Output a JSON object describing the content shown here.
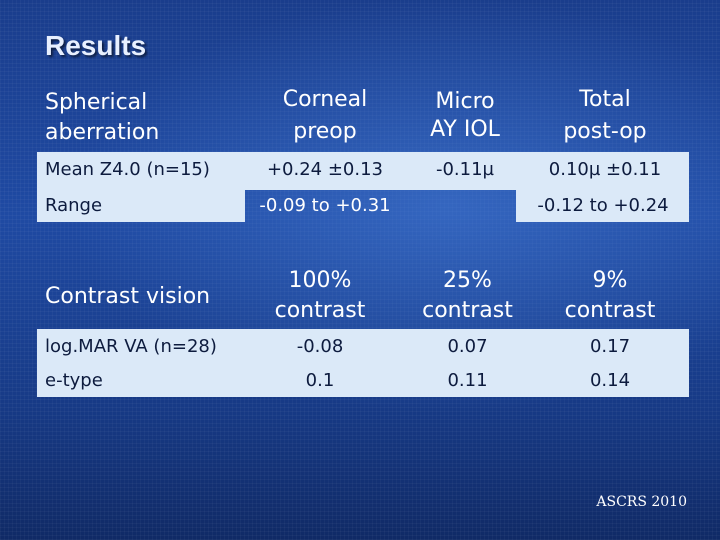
{
  "title": "Results",
  "table1": {
    "headers": {
      "label": [
        "Spherical",
        "aberration"
      ],
      "col1": [
        "Corneal",
        "preop"
      ],
      "col2": [
        "Micro",
        "AY IOL"
      ],
      "col3": [
        "Total",
        "post-op"
      ]
    },
    "rows": [
      {
        "label": "Mean Z4.0 (n=15)",
        "col1": "+0.24 ±0.13",
        "col2": "-0.11µ",
        "col3": "0.10µ ±0.11"
      },
      {
        "label": "Range",
        "col1": "-0.09 to +0.31",
        "col2": "",
        "col3": "-0.12 to +0.24"
      }
    ]
  },
  "table2": {
    "headers": {
      "label": "Contrast vision",
      "col1": [
        "100%",
        "contrast"
      ],
      "col2": [
        "25%",
        "contrast"
      ],
      "col3": [
        "9%",
        "contrast"
      ]
    },
    "rows": [
      {
        "label": "log.MAR VA (n=28)",
        "col1": "-0.08",
        "col2": "0.07",
        "col3": "0.17"
      },
      {
        "label": "e-type",
        "col1": "0.1",
        "col2": "0.11",
        "col3": "0.14"
      }
    ]
  },
  "footer": "ASCRS 2010",
  "colors": {
    "background": "#1f4aa3",
    "band": "#dbe9f8",
    "dark_text": "#0d1b3e",
    "light_text": "#ffffff"
  }
}
